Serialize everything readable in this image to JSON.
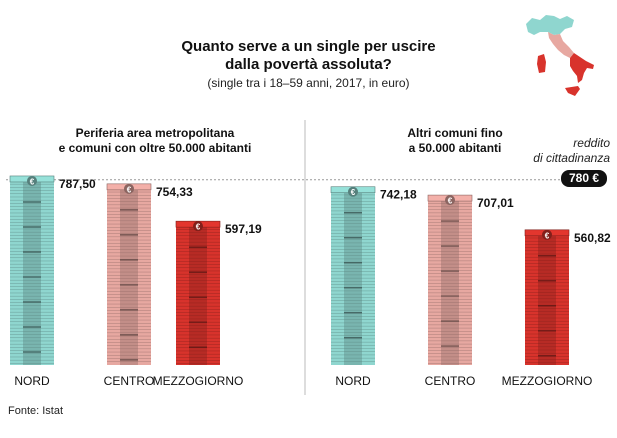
{
  "title_line1": "Quanto serve a un single per uscire",
  "title_line2": "dalla povertà assoluta?",
  "subtitle": "(single tra i 18–59 anni, 2017, in euro)",
  "reference": {
    "label_line1": "reddito",
    "label_line2": "di cittadinanza",
    "badge": "780 €",
    "value": 780
  },
  "source": "Fonte: Istat",
  "colors": {
    "nord": "#8fd6cf",
    "centro": "#e7a8a1",
    "mezzogiorno": "#d8332c",
    "map_north": "#8fd6cf",
    "map_center": "#e7a8a1",
    "map_south": "#d8332c"
  },
  "chart_data": [
    {
      "type": "bar",
      "title": "Periferia area metropolitana\ne comuni con oltre 50.000 abitanti",
      "title_line1": "Periferia area metropolitana",
      "title_line2": "e comuni con oltre 50.000 abitanti",
      "categories": [
        "NORD",
        "CENTRO",
        "MEZZOGIORNO"
      ],
      "values": [
        787.5,
        754.33,
        597.19
      ],
      "value_labels": [
        "787,50",
        "754,33",
        "597,19"
      ],
      "reference_line": 780,
      "ylim": [
        0,
        800
      ]
    },
    {
      "type": "bar",
      "title": "Altri comuni fino\na 50.000 abitanti",
      "title_line1": "Altri comuni fino",
      "title_line2": "a 50.000 abitanti",
      "categories": [
        "NORD",
        "CENTRO",
        "MEZZOGIORNO"
      ],
      "values": [
        742.18,
        707.01,
        560.82
      ],
      "value_labels": [
        "742,18",
        "707,01",
        "560,82"
      ],
      "reference_line": 780,
      "ylim": [
        0,
        800
      ]
    }
  ]
}
